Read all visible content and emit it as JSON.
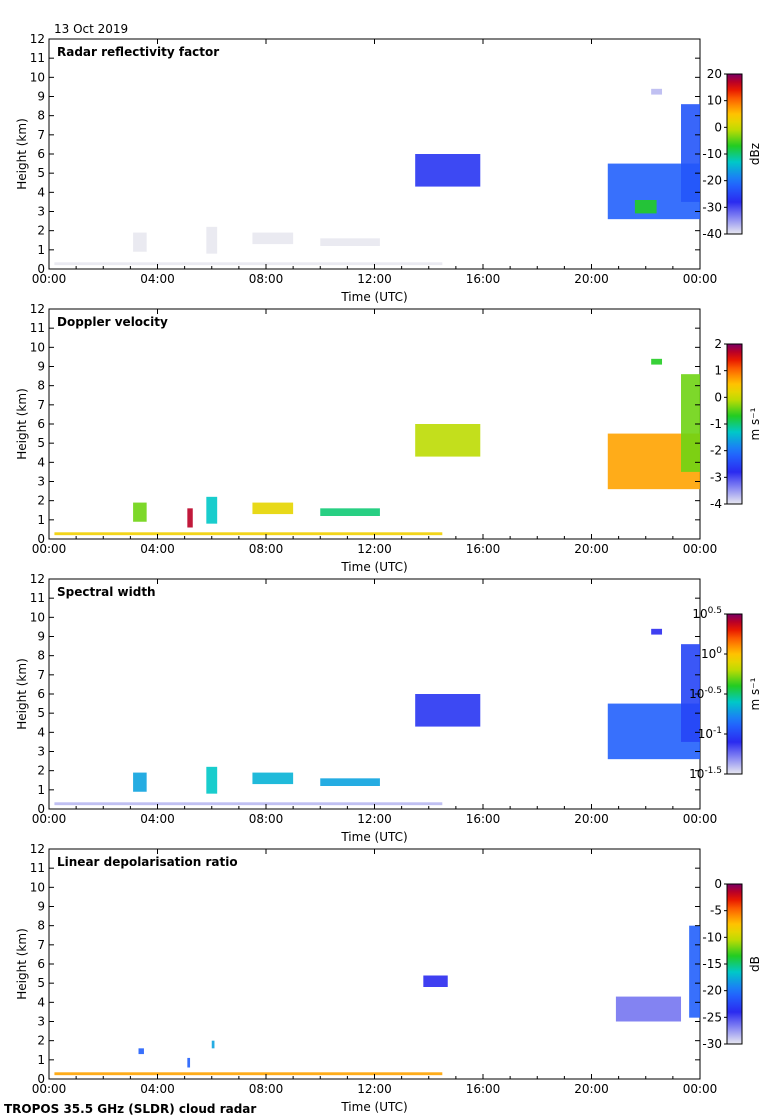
{
  "date_label": "13 Oct 2019",
  "footer_label": "TROPOS 35.5 GHz (SLDR) cloud radar",
  "chart_data": [
    {
      "type": "heatmap",
      "title": "Radar reflectivity factor",
      "xlabel": "Time (UTC)",
      "ylabel": "Height (km)",
      "xlim": [
        0,
        24
      ],
      "ylim": [
        0,
        12
      ],
      "x_ticks": [
        "00:00",
        "04:00",
        "08:00",
        "12:00",
        "16:00",
        "20:00",
        "00:00"
      ],
      "y_ticks": [
        "0",
        "1",
        "2",
        "3",
        "4",
        "5",
        "6",
        "7",
        "8",
        "9",
        "10",
        "11",
        "12"
      ],
      "colorbar": {
        "label": "dBz",
        "scale": "linear",
        "ticks": [
          "20",
          "10",
          "0",
          "-10",
          "-20",
          "-30",
          "-40"
        ],
        "range": [
          -40,
          20
        ]
      },
      "regions": [
        {
          "t0": 0.2,
          "t1": 14.5,
          "h0": 0.2,
          "h1": 0.35,
          "value": 0.0
        },
        {
          "t0": 3.1,
          "t1": 3.6,
          "h0": 0.9,
          "h1": 1.9,
          "value": 0.0
        },
        {
          "t0": 5.8,
          "t1": 6.2,
          "h0": 0.8,
          "h1": 2.2,
          "value": 0.0
        },
        {
          "t0": 7.5,
          "t1": 9.0,
          "h0": 1.3,
          "h1": 1.9,
          "value": 0.0
        },
        {
          "t0": 10.0,
          "t1": 12.2,
          "h0": 1.2,
          "h1": 1.6,
          "value": 0.0
        },
        {
          "t0": 13.5,
          "t1": 15.9,
          "h0": 4.3,
          "h1": 6.0,
          "value": 0.22
        },
        {
          "t0": 20.6,
          "t1": 24.0,
          "h0": 2.6,
          "h1": 5.5,
          "value": 0.3
        },
        {
          "t0": 21.6,
          "t1": 22.4,
          "h0": 2.9,
          "h1": 3.6,
          "value": 0.55
        },
        {
          "t0": 23.3,
          "t1": 24.0,
          "h0": 3.5,
          "h1": 8.6,
          "value": 0.28
        },
        {
          "t0": 22.2,
          "t1": 22.6,
          "h0": 9.1,
          "h1": 9.4,
          "value": 0.05
        }
      ]
    },
    {
      "type": "heatmap",
      "title": "Doppler velocity",
      "xlabel": "Time (UTC)",
      "ylabel": "Height (km)",
      "xlim": [
        0,
        24
      ],
      "ylim": [
        0,
        12
      ],
      "x_ticks": [
        "00:00",
        "04:00",
        "08:00",
        "12:00",
        "16:00",
        "20:00",
        "00:00"
      ],
      "y_ticks": [
        "0",
        "1",
        "2",
        "3",
        "4",
        "5",
        "6",
        "7",
        "8",
        "9",
        "10",
        "11",
        "12"
      ],
      "colorbar": {
        "label": "m s⁻¹",
        "scale": "linear",
        "ticks": [
          "2",
          "1",
          "0",
          "-1",
          "-2",
          "-3",
          "-4"
        ],
        "range": [
          -4,
          2
        ]
      },
      "regions": [
        {
          "t0": 0.2,
          "t1": 14.5,
          "h0": 0.2,
          "h1": 0.35,
          "value": 0.72
        },
        {
          "t0": 3.1,
          "t1": 3.6,
          "h0": 0.9,
          "h1": 1.9,
          "value": 0.6
        },
        {
          "t0": 5.1,
          "t1": 5.3,
          "h0": 0.6,
          "h1": 1.6,
          "value": 0.95
        },
        {
          "t0": 5.8,
          "t1": 6.2,
          "h0": 0.8,
          "h1": 2.2,
          "value": 0.45
        },
        {
          "t0": 7.5,
          "t1": 9.0,
          "h0": 1.3,
          "h1": 1.9,
          "value": 0.7
        },
        {
          "t0": 10.0,
          "t1": 12.2,
          "h0": 1.2,
          "h1": 1.6,
          "value": 0.5
        },
        {
          "t0": 13.5,
          "t1": 15.9,
          "h0": 4.3,
          "h1": 6.0,
          "value": 0.65
        },
        {
          "t0": 20.6,
          "t1": 24.0,
          "h0": 2.6,
          "h1": 5.5,
          "value": 0.78
        },
        {
          "t0": 23.3,
          "t1": 24.0,
          "h0": 3.5,
          "h1": 8.6,
          "value": 0.6
        },
        {
          "t0": 22.2,
          "t1": 22.6,
          "h0": 9.1,
          "h1": 9.4,
          "value": 0.55
        }
      ]
    },
    {
      "type": "heatmap",
      "title": "Spectral width",
      "xlabel": "Time (UTC)",
      "ylabel": "Height (km)",
      "xlim": [
        0,
        24
      ],
      "ylim": [
        0,
        12
      ],
      "x_ticks": [
        "00:00",
        "04:00",
        "08:00",
        "12:00",
        "16:00",
        "20:00",
        "00:00"
      ],
      "y_ticks": [
        "0",
        "1",
        "2",
        "3",
        "4",
        "5",
        "6",
        "7",
        "8",
        "9",
        "10",
        "11",
        "12"
      ],
      "colorbar": {
        "label": "m s⁻¹",
        "scale": "log",
        "ticks": [
          "10^0.5",
          "10^0",
          "10^-0.5",
          "10^-1",
          "10^-1.5"
        ],
        "range": [
          -1.5,
          0.5
        ]
      },
      "regions": [
        {
          "t0": 0.2,
          "t1": 14.5,
          "h0": 0.2,
          "h1": 0.35,
          "value": 0.05
        },
        {
          "t0": 3.1,
          "t1": 3.6,
          "h0": 0.9,
          "h1": 1.9,
          "value": 0.4
        },
        {
          "t0": 5.8,
          "t1": 6.2,
          "h0": 0.8,
          "h1": 2.2,
          "value": 0.45
        },
        {
          "t0": 7.5,
          "t1": 9.0,
          "h0": 1.3,
          "h1": 1.9,
          "value": 0.42
        },
        {
          "t0": 10.0,
          "t1": 12.2,
          "h0": 1.2,
          "h1": 1.6,
          "value": 0.4
        },
        {
          "t0": 13.5,
          "t1": 15.9,
          "h0": 4.3,
          "h1": 6.0,
          "value": 0.22
        },
        {
          "t0": 20.6,
          "t1": 24.0,
          "h0": 2.6,
          "h1": 5.5,
          "value": 0.3
        },
        {
          "t0": 23.3,
          "t1": 24.0,
          "h0": 3.5,
          "h1": 8.6,
          "value": 0.25
        },
        {
          "t0": 22.2,
          "t1": 22.6,
          "h0": 9.1,
          "h1": 9.4,
          "value": 0.2
        }
      ]
    },
    {
      "type": "heatmap",
      "title": "Linear depolarisation ratio",
      "xlabel": "Time (UTC)",
      "ylabel": "Height (km)",
      "xlim": [
        0,
        24
      ],
      "ylim": [
        0,
        12
      ],
      "x_ticks": [
        "00:00",
        "04:00",
        "08:00",
        "12:00",
        "16:00",
        "20:00",
        "00:00"
      ],
      "y_ticks": [
        "0",
        "1",
        "2",
        "3",
        "4",
        "5",
        "6",
        "7",
        "8",
        "9",
        "10",
        "11",
        "12"
      ],
      "colorbar": {
        "label": "dB",
        "scale": "linear",
        "ticks": [
          "0",
          "-5",
          "-10",
          "-15",
          "-20",
          "-25",
          "-30"
        ],
        "range": [
          -30,
          0
        ]
      },
      "regions": [
        {
          "t0": 0.2,
          "t1": 14.5,
          "h0": 0.2,
          "h1": 0.35,
          "value": 0.78
        },
        {
          "t0": 3.3,
          "t1": 3.5,
          "h0": 1.3,
          "h1": 1.6,
          "value": 0.3
        },
        {
          "t0": 5.1,
          "t1": 5.2,
          "h0": 0.6,
          "h1": 1.1,
          "value": 0.3
        },
        {
          "t0": 6.0,
          "t1": 6.1,
          "h0": 1.6,
          "h1": 2.0,
          "value": 0.4
        },
        {
          "t0": 13.8,
          "t1": 14.7,
          "h0": 4.8,
          "h1": 5.4,
          "value": 0.2
        },
        {
          "t0": 20.9,
          "t1": 23.3,
          "h0": 3.0,
          "h1": 4.3,
          "value": 0.12
        },
        {
          "t0": 23.6,
          "t1": 24.0,
          "h0": 3.2,
          "h1": 8.0,
          "value": 0.3
        }
      ]
    }
  ]
}
